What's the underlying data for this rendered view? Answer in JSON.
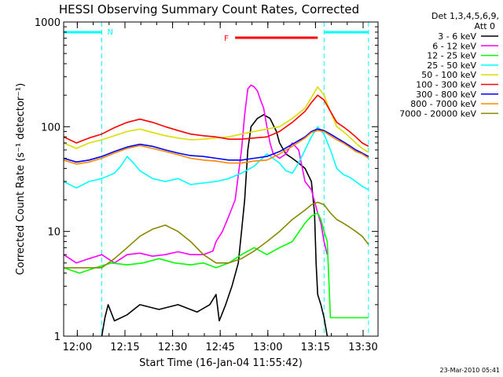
{
  "chart_data": {
    "type": "line",
    "title": "HESSI Observing Summary Count Rates, Corrected",
    "xlabel": "Start Time (16-Jan-04 11:55:42)",
    "ylabel": "Corrected Count Rate (s⁻¹ detector⁻¹)",
    "x_unit": "minutes after 11:55:42",
    "xlim": [
      0,
      99
    ],
    "ylim": [
      1,
      1000
    ],
    "yscale": "log",
    "x_ticks": [
      {
        "t": 4.3,
        "label": "12:00"
      },
      {
        "t": 19.3,
        "label": "12:15"
      },
      {
        "t": 34.3,
        "label": "12:30"
      },
      {
        "t": 49.3,
        "label": "12:45"
      },
      {
        "t": 64.3,
        "label": "13:00"
      },
      {
        "t": 79.3,
        "label": "13:15"
      },
      {
        "t": 94.3,
        "label": "13:30"
      }
    ],
    "y_ticks": [
      {
        "v": 1,
        "label": "1"
      },
      {
        "v": 10,
        "label": "10"
      },
      {
        "v": 100,
        "label": "100"
      },
      {
        "v": 1000,
        "label": "1000"
      }
    ],
    "legend": {
      "position": "right",
      "header": [
        "Det 1,3,4,5,6,9,",
        "Att 0"
      ]
    },
    "annotations": {
      "night_marker": "N",
      "flare_marker": "F",
      "timestamp": "23-Mar-2010 05:41"
    },
    "night_intervals": [
      [
        0,
        12
      ],
      [
        82,
        96
      ]
    ],
    "flare_interval": [
      54,
      80
    ],
    "series": [
      {
        "name": "3 - 6 keV",
        "color": "#000000",
        "points": [
          [
            12,
            1
          ],
          [
            13,
            1.5
          ],
          [
            14,
            2
          ],
          [
            16,
            1.4
          ],
          [
            20,
            1.6
          ],
          [
            24,
            2
          ],
          [
            30,
            1.8
          ],
          [
            36,
            2
          ],
          [
            42,
            1.7
          ],
          [
            46,
            2
          ],
          [
            48,
            2.5
          ],
          [
            49,
            1.4
          ],
          [
            51,
            2
          ],
          [
            53,
            3
          ],
          [
            55,
            5
          ],
          [
            56,
            10
          ],
          [
            57,
            20
          ],
          [
            58,
            60
          ],
          [
            59,
            100
          ],
          [
            61,
            120
          ],
          [
            63,
            130
          ],
          [
            65,
            120
          ],
          [
            67,
            90
          ],
          [
            68,
            70
          ],
          [
            70,
            55
          ],
          [
            72,
            50
          ],
          [
            74,
            45
          ],
          [
            76,
            40
          ],
          [
            78,
            30
          ],
          [
            79,
            15
          ],
          [
            79.5,
            5
          ],
          [
            80,
            2.5
          ],
          [
            81,
            2
          ],
          [
            82,
            1.5
          ],
          [
            83,
            1
          ]
        ]
      },
      {
        "name": "6 - 12 keV",
        "color": "#ff00ff",
        "points": [
          [
            0,
            6
          ],
          [
            4,
            5
          ],
          [
            8,
            5.5
          ],
          [
            12,
            6
          ],
          [
            16,
            5
          ],
          [
            20,
            6
          ],
          [
            24,
            6.2
          ],
          [
            28,
            5.8
          ],
          [
            32,
            6
          ],
          [
            36,
            6.4
          ],
          [
            40,
            6
          ],
          [
            44,
            6
          ],
          [
            47,
            6.5
          ],
          [
            48,
            8
          ],
          [
            50,
            10
          ],
          [
            52,
            14
          ],
          [
            54,
            20
          ],
          [
            56,
            60
          ],
          [
            57,
            130
          ],
          [
            58,
            230
          ],
          [
            59,
            250
          ],
          [
            60,
            240
          ],
          [
            61,
            220
          ],
          [
            62,
            180
          ],
          [
            63,
            150
          ],
          [
            64,
            100
          ],
          [
            65,
            70
          ],
          [
            66,
            55
          ],
          [
            68,
            50
          ],
          [
            70,
            55
          ],
          [
            72,
            70
          ],
          [
            74,
            60
          ],
          [
            76,
            30
          ],
          [
            78,
            25
          ],
          [
            80,
            15
          ],
          [
            81,
            12
          ],
          [
            82,
            8
          ],
          [
            83,
            6
          ]
        ]
      },
      {
        "name": "12 - 25 keV",
        "color": "#00ff00",
        "points": [
          [
            0,
            4.5
          ],
          [
            5,
            4
          ],
          [
            10,
            4.5
          ],
          [
            15,
            5
          ],
          [
            20,
            4.8
          ],
          [
            25,
            5
          ],
          [
            30,
            5.5
          ],
          [
            35,
            5
          ],
          [
            40,
            4.8
          ],
          [
            44,
            5
          ],
          [
            48,
            4.5
          ],
          [
            52,
            5
          ],
          [
            56,
            6
          ],
          [
            60,
            7
          ],
          [
            64,
            6
          ],
          [
            68,
            7
          ],
          [
            72,
            8
          ],
          [
            76,
            12
          ],
          [
            78,
            14
          ],
          [
            80,
            15
          ],
          [
            81,
            13
          ],
          [
            82,
            10
          ],
          [
            83,
            8
          ],
          [
            84,
            1.5
          ],
          [
            96,
            1.5
          ]
        ]
      },
      {
        "name": "25 - 50 keV",
        "color": "#00ffff",
        "points": [
          [
            0,
            30
          ],
          [
            4,
            26
          ],
          [
            8,
            30
          ],
          [
            12,
            32
          ],
          [
            16,
            36
          ],
          [
            18,
            42
          ],
          [
            20,
            52
          ],
          [
            22,
            45
          ],
          [
            24,
            38
          ],
          [
            28,
            32
          ],
          [
            32,
            30
          ],
          [
            36,
            32
          ],
          [
            40,
            28
          ],
          [
            44,
            29
          ],
          [
            48,
            30
          ],
          [
            52,
            32
          ],
          [
            56,
            36
          ],
          [
            60,
            42
          ],
          [
            64,
            55
          ],
          [
            68,
            45
          ],
          [
            70,
            38
          ],
          [
            72,
            36
          ],
          [
            74,
            45
          ],
          [
            76,
            60
          ],
          [
            78,
            80
          ],
          [
            80,
            100
          ],
          [
            82,
            85
          ],
          [
            84,
            60
          ],
          [
            86,
            40
          ],
          [
            88,
            35
          ],
          [
            90,
            33
          ],
          [
            92,
            30
          ],
          [
            94,
            27
          ],
          [
            96,
            25
          ]
        ]
      },
      {
        "name": "50 - 100 keV",
        "color": "#dddd00",
        "points": [
          [
            0,
            70
          ],
          [
            4,
            62
          ],
          [
            8,
            70
          ],
          [
            12,
            75
          ],
          [
            16,
            82
          ],
          [
            20,
            90
          ],
          [
            24,
            95
          ],
          [
            28,
            88
          ],
          [
            32,
            82
          ],
          [
            36,
            78
          ],
          [
            40,
            75
          ],
          [
            44,
            76
          ],
          [
            48,
            78
          ],
          [
            52,
            80
          ],
          [
            56,
            85
          ],
          [
            60,
            90
          ],
          [
            64,
            95
          ],
          [
            68,
            100
          ],
          [
            72,
            120
          ],
          [
            76,
            150
          ],
          [
            78,
            190
          ],
          [
            80,
            240
          ],
          [
            82,
            200
          ],
          [
            84,
            140
          ],
          [
            86,
            100
          ],
          [
            88,
            90
          ],
          [
            90,
            80
          ],
          [
            92,
            70
          ],
          [
            94,
            62
          ],
          [
            96,
            57
          ]
        ]
      },
      {
        "name": "100 - 300 keV",
        "color": "#ff0000",
        "points": [
          [
            0,
            80
          ],
          [
            4,
            70
          ],
          [
            8,
            78
          ],
          [
            12,
            85
          ],
          [
            16,
            98
          ],
          [
            20,
            110
          ],
          [
            24,
            118
          ],
          [
            28,
            110
          ],
          [
            32,
            100
          ],
          [
            36,
            92
          ],
          [
            40,
            85
          ],
          [
            44,
            82
          ],
          [
            48,
            80
          ],
          [
            52,
            76
          ],
          [
            56,
            76
          ],
          [
            60,
            78
          ],
          [
            64,
            80
          ],
          [
            68,
            90
          ],
          [
            72,
            110
          ],
          [
            76,
            140
          ],
          [
            78,
            170
          ],
          [
            80,
            200
          ],
          [
            82,
            180
          ],
          [
            84,
            140
          ],
          [
            86,
            110
          ],
          [
            88,
            100
          ],
          [
            90,
            90
          ],
          [
            92,
            80
          ],
          [
            94,
            70
          ],
          [
            96,
            65
          ]
        ]
      },
      {
        "name": "300 - 800 keV",
        "color": "#0000ff",
        "points": [
          [
            0,
            50
          ],
          [
            4,
            46
          ],
          [
            8,
            48
          ],
          [
            12,
            52
          ],
          [
            16,
            58
          ],
          [
            20,
            64
          ],
          [
            24,
            68
          ],
          [
            28,
            65
          ],
          [
            32,
            60
          ],
          [
            36,
            56
          ],
          [
            40,
            53
          ],
          [
            44,
            52
          ],
          [
            48,
            50
          ],
          [
            52,
            48
          ],
          [
            56,
            48
          ],
          [
            60,
            50
          ],
          [
            64,
            52
          ],
          [
            68,
            58
          ],
          [
            72,
            68
          ],
          [
            76,
            80
          ],
          [
            78,
            90
          ],
          [
            80,
            95
          ],
          [
            82,
            92
          ],
          [
            84,
            85
          ],
          [
            86,
            78
          ],
          [
            88,
            72
          ],
          [
            90,
            66
          ],
          [
            92,
            60
          ],
          [
            94,
            56
          ],
          [
            96,
            52
          ]
        ]
      },
      {
        "name": "800 - 7000 keV",
        "color": "#ff8800",
        "points": [
          [
            0,
            48
          ],
          [
            4,
            44
          ],
          [
            8,
            46
          ],
          [
            12,
            50
          ],
          [
            16,
            56
          ],
          [
            20,
            62
          ],
          [
            24,
            66
          ],
          [
            28,
            62
          ],
          [
            32,
            58
          ],
          [
            36,
            54
          ],
          [
            40,
            50
          ],
          [
            44,
            48
          ],
          [
            48,
            47
          ],
          [
            52,
            45
          ],
          [
            56,
            45
          ],
          [
            60,
            47
          ],
          [
            64,
            48
          ],
          [
            68,
            55
          ],
          [
            72,
            65
          ],
          [
            76,
            78
          ],
          [
            78,
            88
          ],
          [
            80,
            92
          ],
          [
            82,
            90
          ],
          [
            84,
            82
          ],
          [
            86,
            75
          ],
          [
            88,
            70
          ],
          [
            90,
            64
          ],
          [
            92,
            58
          ],
          [
            94,
            55
          ],
          [
            96,
            50
          ]
        ]
      },
      {
        "name": "7000 - 20000 keV",
        "color": "#888800",
        "points": [
          [
            0,
            4.5
          ],
          [
            4,
            4.5
          ],
          [
            8,
            4.5
          ],
          [
            12,
            4.5
          ],
          [
            16,
            5.5
          ],
          [
            20,
            7
          ],
          [
            24,
            9
          ],
          [
            28,
            10.5
          ],
          [
            32,
            11.5
          ],
          [
            36,
            10
          ],
          [
            40,
            8
          ],
          [
            44,
            6
          ],
          [
            48,
            5
          ],
          [
            52,
            5
          ],
          [
            56,
            5.5
          ],
          [
            60,
            6.5
          ],
          [
            64,
            8
          ],
          [
            68,
            10
          ],
          [
            72,
            13
          ],
          [
            76,
            16
          ],
          [
            78,
            18
          ],
          [
            80,
            19
          ],
          [
            82,
            18
          ],
          [
            84,
            15
          ],
          [
            86,
            13
          ],
          [
            88,
            12
          ],
          [
            90,
            11
          ],
          [
            92,
            10
          ],
          [
            94,
            9
          ],
          [
            96,
            7.5
          ]
        ]
      }
    ]
  }
}
